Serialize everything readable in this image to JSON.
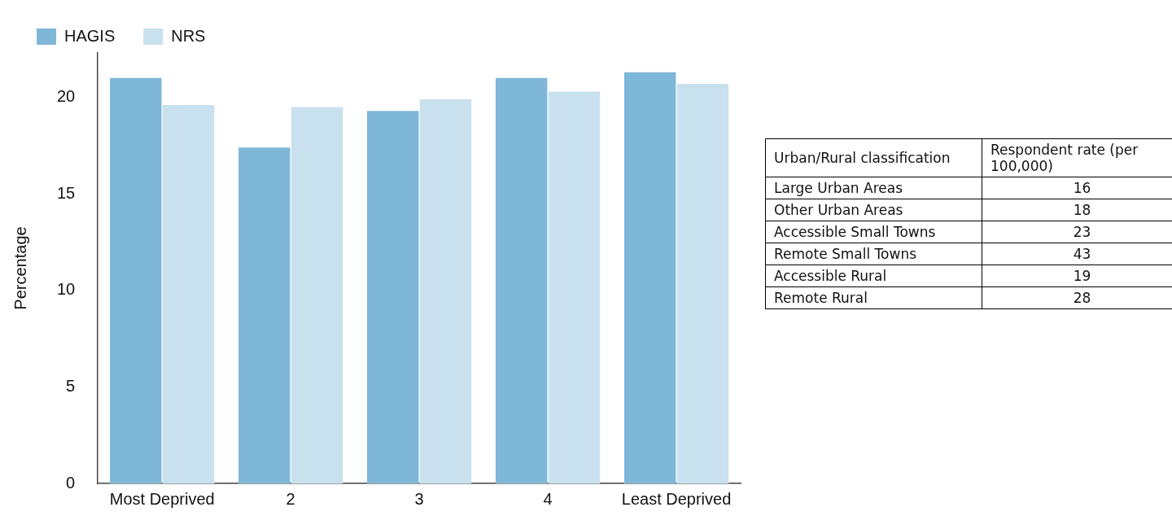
{
  "chart_data": [
    {
      "type": "bar",
      "ylabel": "Percentage",
      "categories": [
        "Most Deprived",
        "2",
        "3",
        "4",
        "Least Deprived"
      ],
      "ylim": [
        0,
        22.3
      ],
      "yticks": [
        0,
        5,
        10,
        15,
        20
      ],
      "grid": false,
      "legend": "top left",
      "series": [
        {
          "name": "HAGIS",
          "color": "#7fb7d9",
          "values": [
            21.0,
            17.4,
            19.3,
            21.0,
            21.3
          ]
        },
        {
          "name": "NRS",
          "color": "#c9e1ef",
          "values": [
            19.6,
            19.5,
            19.9,
            20.3,
            20.7
          ]
        }
      ]
    },
    {
      "type": "other",
      "data_labels": true,
      "xlabel": "Urban/Rural classification",
      "ylabel": "Respondent rate (per 100,000)",
      "categories": [
        "Large Urban Areas",
        "Other Urban Areas",
        "Accessible Small Towns",
        "Remote Small Towns",
        "Accessible Rural",
        "Remote Rural"
      ],
      "values": [
        16,
        18,
        23,
        43,
        19,
        28
      ]
    }
  ]
}
